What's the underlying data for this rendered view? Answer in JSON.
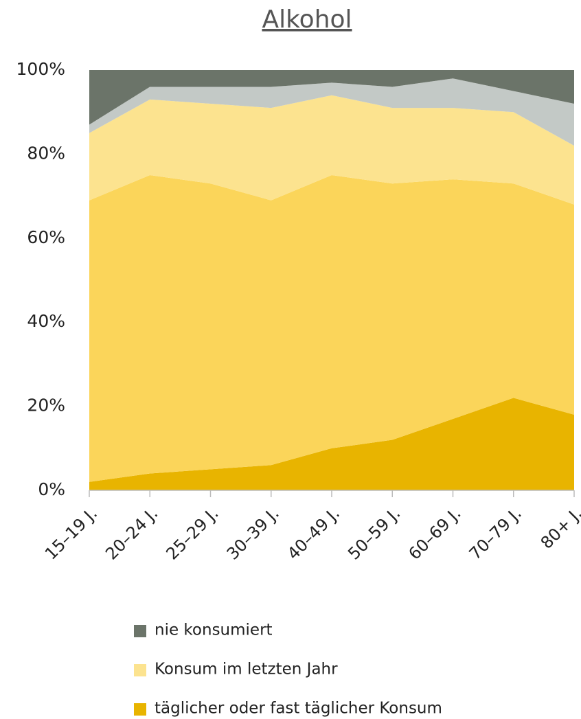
{
  "chart_data": {
    "type": "stacked_area",
    "title": "Alkohol",
    "categories": [
      "15–19 J.",
      "20–24 J.",
      "25–29 J.",
      "30–39 J.",
      "40–49 J.",
      "50–59 J.",
      "60–69 J.",
      "70–79 J.",
      "80+ J."
    ],
    "series": [
      {
        "name": "täglicher oder fast täglicher Konsum",
        "color": "#e8b400",
        "values": [
          2,
          4,
          5,
          6,
          10,
          12,
          17,
          22,
          18
        ]
      },
      {
        "color": "#fbd55a",
        "values": [
          67,
          71,
          68,
          63,
          65,
          61,
          57,
          51,
          50
        ]
      },
      {
        "name": "Konsum im letzten Jahr",
        "color": "#fce38f",
        "values": [
          16,
          18,
          19,
          22,
          19,
          18,
          17,
          17,
          14
        ]
      },
      {
        "color": "#c3c9c6",
        "values": [
          2,
          3,
          4,
          5,
          3,
          5,
          7,
          5,
          10
        ]
      },
      {
        "name": "nie konsumiert",
        "color": "#6b7469",
        "values": [
          13,
          4,
          4,
          4,
          3,
          4,
          2,
          5,
          8
        ]
      }
    ],
    "ylim": [
      0,
      100
    ],
    "yticks": [
      {
        "value": 0,
        "label": "0%"
      },
      {
        "value": 20,
        "label": "20%"
      },
      {
        "value": 40,
        "label": "40%"
      },
      {
        "value": 60,
        "label": "60%"
      },
      {
        "value": 80,
        "label": "80%"
      },
      {
        "value": 100,
        "label": "100%"
      }
    ]
  }
}
